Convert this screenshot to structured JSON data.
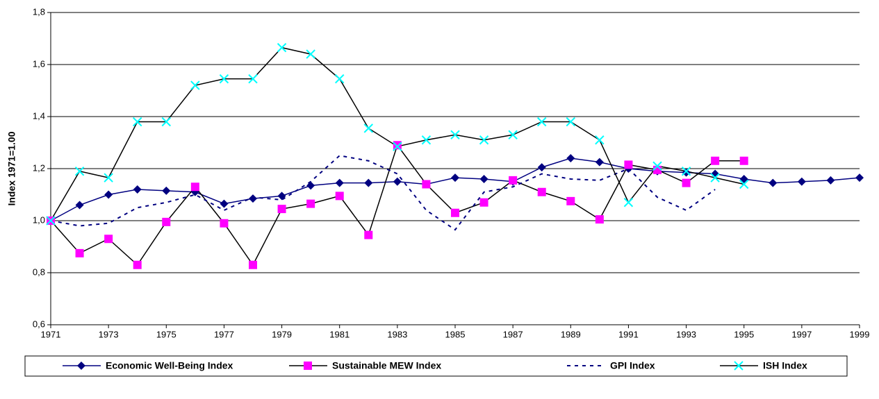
{
  "chart_data": {
    "type": "line",
    "y_label": "Index 1971=1.00",
    "x": [
      1971,
      1972,
      1973,
      1974,
      1975,
      1976,
      1977,
      1978,
      1979,
      1980,
      1981,
      1982,
      1983,
      1984,
      1985,
      1986,
      1987,
      1988,
      1989,
      1990,
      1991,
      1992,
      1993,
      1994,
      1995,
      1996,
      1997,
      1998,
      1999
    ],
    "xlim": [
      1971,
      1999
    ],
    "xticks": [
      1971,
      1973,
      1975,
      1977,
      1979,
      1981,
      1983,
      1985,
      1987,
      1989,
      1991,
      1993,
      1995,
      1997,
      1999
    ],
    "ylim": [
      0.6,
      1.8
    ],
    "yticks": [
      {
        "value": 0.6,
        "label": "0,6"
      },
      {
        "value": 0.8,
        "label": "0,8"
      },
      {
        "value": 1.0,
        "label": "1,0"
      },
      {
        "value": 1.2,
        "label": "1,2"
      },
      {
        "value": 1.4,
        "label": "1,4"
      },
      {
        "value": 1.6,
        "label": "1,6"
      },
      {
        "value": 1.8,
        "label": "1,8"
      }
    ],
    "grid": true,
    "legend": "bottom",
    "series": [
      {
        "name": "Economic Well-Being Index",
        "color": "#000080",
        "marker": "diamond",
        "marker_color": "#000080",
        "line_style": "solid",
        "values": [
          1.0,
          1.06,
          1.1,
          1.12,
          1.115,
          1.11,
          1.065,
          1.085,
          1.095,
          1.135,
          1.145,
          1.145,
          1.15,
          1.14,
          1.165,
          1.16,
          1.15,
          1.205,
          1.24,
          1.225,
          1.2,
          1.19,
          1.185,
          1.18,
          1.16,
          1.145,
          1.15,
          1.155,
          1.165
        ]
      },
      {
        "name": "Sustainable MEW Index",
        "color": "#000000",
        "marker": "square",
        "marker_color": "#ff00ff",
        "line_style": "solid",
        "values": [
          1.0,
          0.875,
          0.93,
          0.83,
          0.995,
          1.13,
          0.99,
          0.83,
          1.045,
          1.065,
          1.095,
          0.945,
          1.29,
          1.14,
          1.03,
          1.07,
          1.155,
          1.11,
          1.075,
          1.005,
          1.215,
          1.195,
          1.145,
          1.23,
          1.23,
          null,
          null,
          null,
          null
        ]
      },
      {
        "name": "GPI Index",
        "color": "#000080",
        "marker": "none",
        "marker_color": "#000080",
        "line_style": "dashed",
        "values": [
          1.0,
          0.98,
          0.99,
          1.05,
          1.07,
          1.1,
          1.04,
          1.09,
          1.08,
          1.15,
          1.25,
          1.23,
          1.18,
          1.04,
          0.965,
          1.11,
          1.13,
          1.18,
          1.16,
          1.155,
          1.2,
          1.09,
          1.04,
          1.12,
          null,
          null,
          null,
          null,
          null
        ]
      },
      {
        "name": "ISH Index",
        "color": "#000000",
        "marker": "x",
        "marker_color": "#00ffff",
        "line_style": "solid",
        "values": [
          1.0,
          1.19,
          1.165,
          1.38,
          1.38,
          1.52,
          1.545,
          1.545,
          1.665,
          1.64,
          1.545,
          1.355,
          1.285,
          1.31,
          1.33,
          1.31,
          1.33,
          1.38,
          1.38,
          1.31,
          1.07,
          1.21,
          1.19,
          1.165,
          1.14,
          null,
          null,
          null,
          null
        ]
      }
    ]
  }
}
